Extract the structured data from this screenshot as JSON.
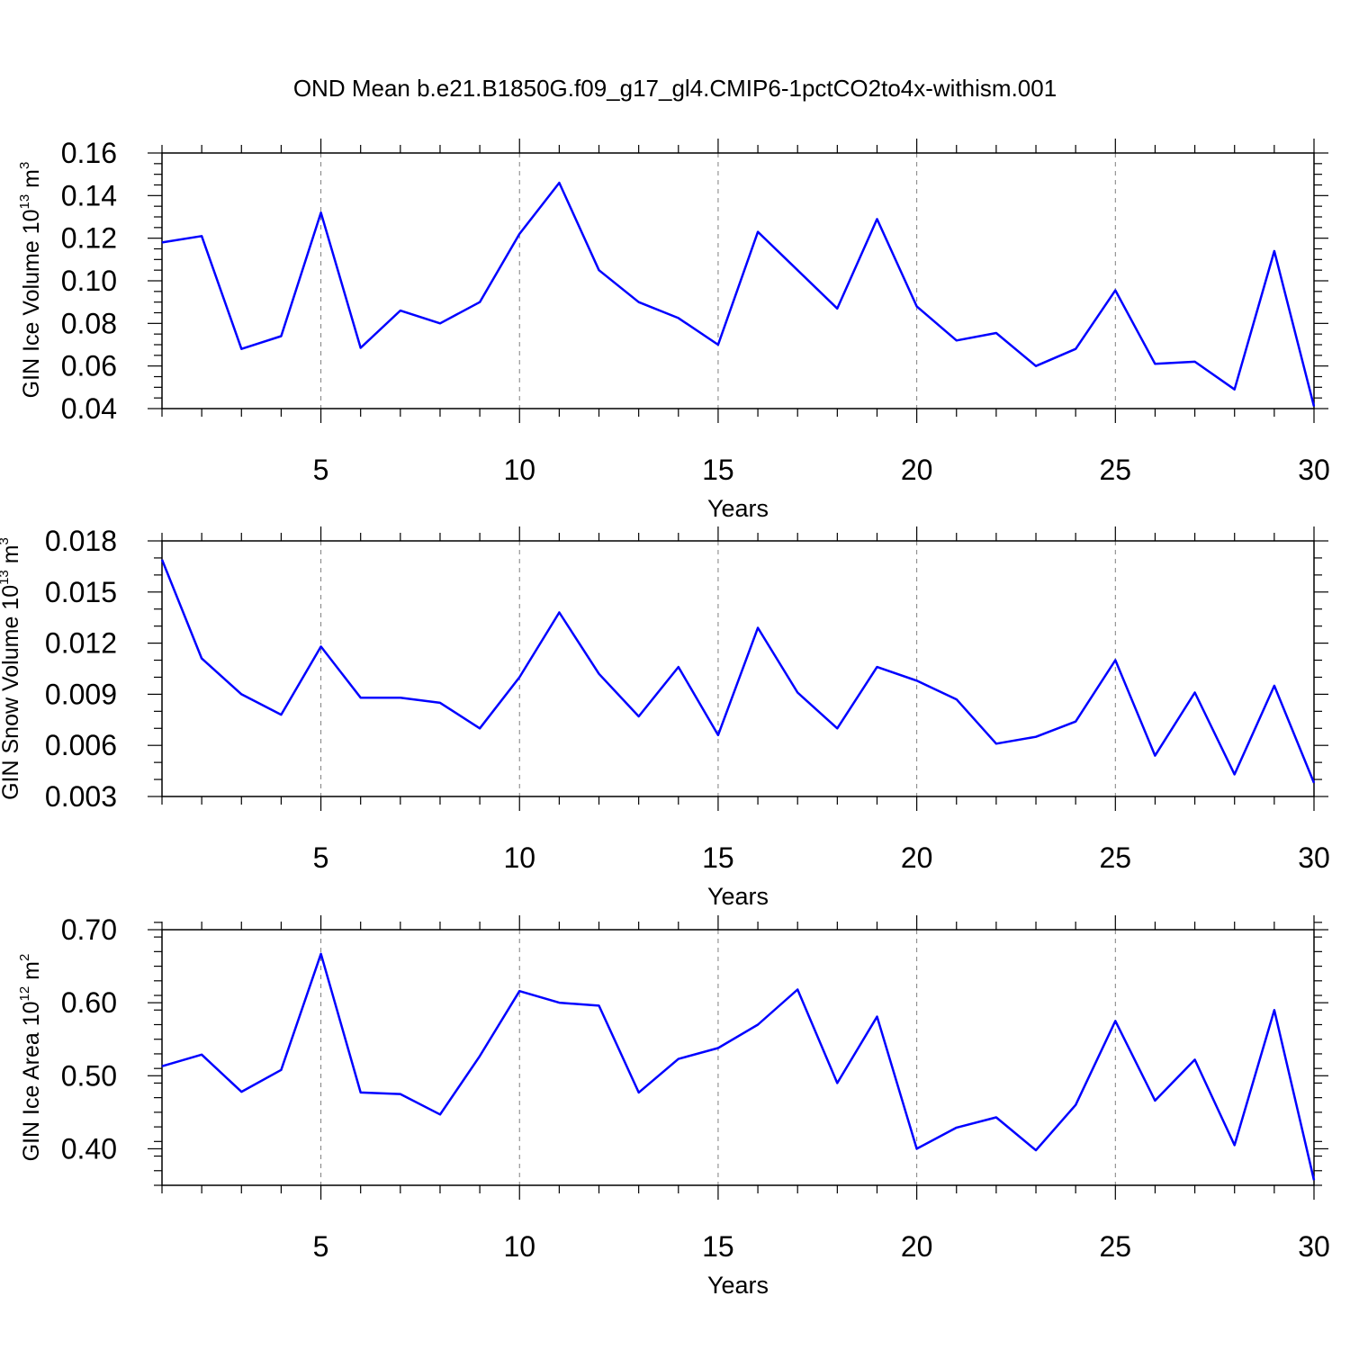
{
  "title": "OND Mean b.e21.B1850G.f09_g17_gl4.CMIP6-1pctCO2to4x-withism.001",
  "colors": {
    "series": "#0000ff",
    "grid": "#808080"
  },
  "chart_data": [
    {
      "type": "line",
      "ylabel": {
        "main": "GIN Ice Volume 10",
        "sup": "13",
        "unit": " m",
        "unit_sup": "3"
      },
      "xlabel": "Years",
      "xlim": [
        1,
        30
      ],
      "ylim": [
        0.04,
        0.16
      ],
      "yticks": [
        0.04,
        0.06,
        0.08,
        0.1,
        0.12,
        0.14,
        0.16
      ],
      "ytick_labels": [
        "0.04",
        "0.06",
        "0.08",
        "0.10",
        "0.12",
        "0.14",
        "0.16"
      ],
      "yminor_step": 0.005,
      "xticks": [
        5,
        10,
        15,
        20,
        25,
        30
      ],
      "xtick_labels": [
        "5",
        "10",
        "15",
        "20",
        "25",
        "30"
      ],
      "x": [
        1,
        2,
        3,
        4,
        5,
        6,
        7,
        8,
        9,
        10,
        11,
        12,
        13,
        14,
        15,
        16,
        17,
        18,
        19,
        20,
        21,
        22,
        23,
        24,
        25,
        26,
        27,
        28,
        29,
        30
      ],
      "values": [
        0.118,
        0.121,
        0.068,
        0.074,
        0.132,
        0.0685,
        0.086,
        0.08,
        0.09,
        0.122,
        0.146,
        0.105,
        0.09,
        0.0825,
        0.07,
        0.123,
        0.105,
        0.087,
        0.129,
        0.088,
        0.072,
        0.0755,
        0.06,
        0.068,
        0.0955,
        0.061,
        0.062,
        0.049,
        0.114,
        0.041
      ],
      "grid": "vertical dashed at major x ticks"
    },
    {
      "type": "line",
      "ylabel": {
        "main": "GIN Snow Volume 10",
        "sup": "13",
        "unit": " m",
        "unit_sup": "3"
      },
      "xlabel": "Years",
      "xlim": [
        1,
        30
      ],
      "ylim": [
        0.003,
        0.018
      ],
      "yticks": [
        0.003,
        0.006,
        0.009,
        0.012,
        0.015,
        0.018
      ],
      "ytick_labels": [
        "0.003",
        "0.006",
        "0.009",
        "0.012",
        "0.015",
        "0.018"
      ],
      "yminor_step": 0.001,
      "xticks": [
        5,
        10,
        15,
        20,
        25,
        30
      ],
      "xtick_labels": [
        "5",
        "10",
        "15",
        "20",
        "25",
        "30"
      ],
      "x": [
        1,
        2,
        3,
        4,
        5,
        6,
        7,
        8,
        9,
        10,
        11,
        12,
        13,
        14,
        15,
        16,
        17,
        18,
        19,
        20,
        21,
        22,
        23,
        24,
        25,
        26,
        27,
        28,
        29,
        30
      ],
      "values": [
        0.0169,
        0.0111,
        0.009,
        0.0078,
        0.0118,
        0.0088,
        0.0088,
        0.0085,
        0.007,
        0.01,
        0.0138,
        0.0102,
        0.0077,
        0.0106,
        0.0066,
        0.0129,
        0.0091,
        0.007,
        0.0106,
        0.0098,
        0.0087,
        0.0061,
        0.0065,
        0.0074,
        0.011,
        0.0054,
        0.0091,
        0.0043,
        0.0095,
        0.0038
      ],
      "grid": "vertical dashed at major x ticks"
    },
    {
      "type": "line",
      "ylabel": {
        "main": "GIN Ice Area 10",
        "sup": "12",
        "unit": " m",
        "unit_sup": "2"
      },
      "xlabel": "Years",
      "xlim": [
        1,
        30
      ],
      "ylim": [
        0.35,
        0.7
      ],
      "yticks": [
        0.4,
        0.5,
        0.6,
        0.7
      ],
      "ytick_labels": [
        "0.40",
        "0.50",
        "0.60",
        "0.70"
      ],
      "yminor_step": 0.02,
      "xticks": [
        5,
        10,
        15,
        20,
        25,
        30
      ],
      "xtick_labels": [
        "5",
        "10",
        "15",
        "20",
        "25",
        "30"
      ],
      "x": [
        1,
        2,
        3,
        4,
        5,
        6,
        7,
        8,
        9,
        10,
        11,
        12,
        13,
        14,
        15,
        16,
        17,
        18,
        19,
        20,
        21,
        22,
        23,
        24,
        25,
        26,
        27,
        28,
        29,
        30
      ],
      "values": [
        0.513,
        0.529,
        0.478,
        0.508,
        0.667,
        0.477,
        0.475,
        0.447,
        0.527,
        0.616,
        0.6,
        0.596,
        0.477,
        0.523,
        0.538,
        0.57,
        0.618,
        0.49,
        0.581,
        0.4,
        0.429,
        0.443,
        0.398,
        0.46,
        0.575,
        0.466,
        0.522,
        0.405,
        0.59,
        0.357
      ],
      "grid": "vertical dashed at major x ticks"
    }
  ]
}
